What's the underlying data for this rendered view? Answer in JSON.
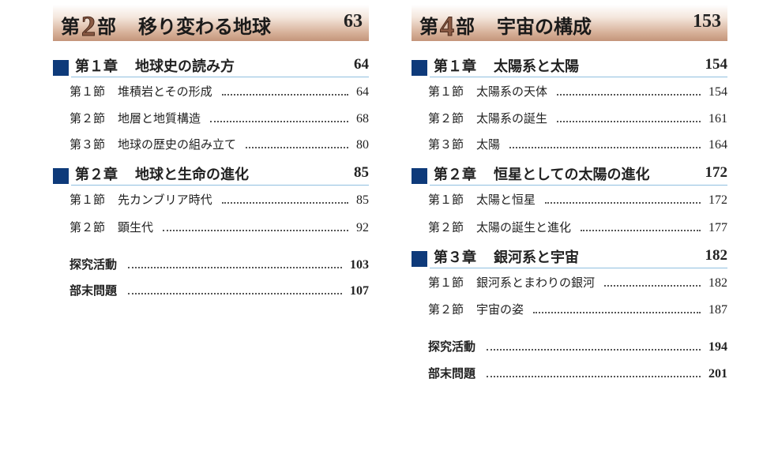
{
  "left": {
    "part": {
      "prefix": "第",
      "num": "2",
      "suffix": "部",
      "title": "移り変わる地球",
      "page": "63"
    },
    "chapters": [
      {
        "label": "第１章",
        "title": "地球史の読み方",
        "page": "64",
        "sections": [
          {
            "label": "第１節",
            "title": "堆積岩とその形成",
            "page": "64"
          },
          {
            "label": "第２節",
            "title": "地層と地質構造",
            "page": "68"
          },
          {
            "label": "第３節",
            "title": "地球の歴史の組み立て",
            "page": "80"
          }
        ]
      },
      {
        "label": "第２章",
        "title": "地球と生命の進化",
        "page": "85",
        "sections": [
          {
            "label": "第１節",
            "title": "先カンブリア時代",
            "page": "85"
          },
          {
            "label": "第２節",
            "title": "顕生代",
            "page": "92"
          }
        ]
      }
    ],
    "extras": [
      {
        "title": "探究活動",
        "page": "103"
      },
      {
        "title": "部末問題",
        "page": "107"
      }
    ]
  },
  "right": {
    "part": {
      "prefix": "第",
      "num": "4",
      "suffix": "部",
      "title": "宇宙の構成",
      "page": "153"
    },
    "chapters": [
      {
        "label": "第１章",
        "title": "太陽系と太陽",
        "page": "154",
        "sections": [
          {
            "label": "第１節",
            "title": "太陽系の天体",
            "page": "154"
          },
          {
            "label": "第２節",
            "title": "太陽系の誕生",
            "page": "161"
          },
          {
            "label": "第３節",
            "title": "太陽",
            "page": "164"
          }
        ]
      },
      {
        "label": "第２章",
        "title": "恒星としての太陽の進化",
        "page": "172",
        "sections": [
          {
            "label": "第１節",
            "title": "太陽と恒星",
            "page": "172"
          },
          {
            "label": "第２節",
            "title": "太陽の誕生と進化",
            "page": "177"
          }
        ]
      },
      {
        "label": "第３章",
        "title": "銀河系と宇宙",
        "page": "182",
        "sections": [
          {
            "label": "第１節",
            "title": "銀河系とまわりの銀河",
            "page": "182"
          },
          {
            "label": "第２節",
            "title": "宇宙の姿",
            "page": "187"
          }
        ]
      }
    ],
    "extras": [
      {
        "title": "探究活動",
        "page": "194"
      },
      {
        "title": "部末問題",
        "page": "201"
      }
    ]
  },
  "colors": {
    "chapter_marker": "#0e3a7a",
    "chapter_rule": "#8fbfe0",
    "part_band": "#c4957a"
  }
}
